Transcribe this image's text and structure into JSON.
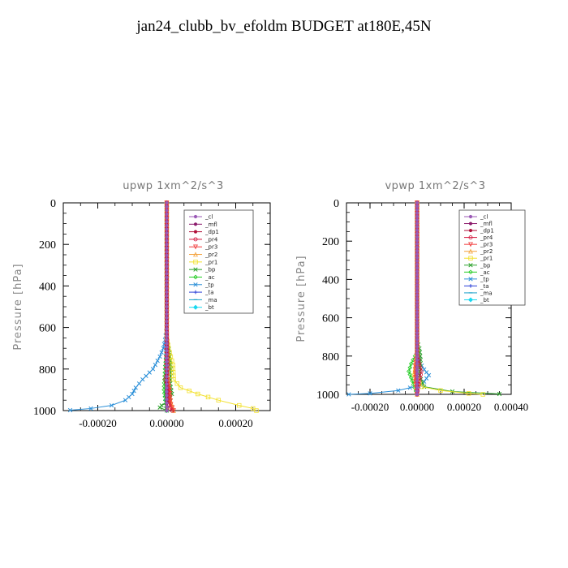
{
  "page_title": "jan24_clubb_bv_efoldm  BUDGET at180E,45N",
  "legend_entries": [
    {
      "label": "_cl",
      "color": "#9b59b6",
      "marker": "circle"
    },
    {
      "label": "_mfl",
      "color": "#8b1a6b",
      "marker": "circle"
    },
    {
      "label": "_dp1",
      "color": "#b0103a",
      "marker": "circle"
    },
    {
      "label": "_pr4",
      "color": "#d4143c",
      "marker": "circle-open"
    },
    {
      "label": "_pr3",
      "color": "#f03a3a",
      "marker": "triangle-down"
    },
    {
      "label": "_pr2",
      "color": "#f4a13a",
      "marker": "triangle-up"
    },
    {
      "label": "_pr1",
      "color": "#f2e02a",
      "marker": "square-open"
    },
    {
      "label": "_bp",
      "color": "#2aa02a",
      "marker": "x"
    },
    {
      "label": "_ac",
      "color": "#22cc22",
      "marker": "diamond-open"
    },
    {
      "label": "_tp",
      "color": "#2a8fd8",
      "marker": "x"
    },
    {
      "label": "_ta",
      "color": "#2a3fd8",
      "marker": "plus"
    },
    {
      "label": "_ma",
      "color": "#18a0c8",
      "marker": "dash"
    },
    {
      "label": "_bt",
      "color": "#18d8f0",
      "marker": "diamond"
    }
  ],
  "chart_data": [
    {
      "type": "line",
      "title": "upwp   1xm^2/s^3",
      "xlabel": "",
      "ylabel": "Pressure [hPa]",
      "xlim": [
        -0.0003,
        0.0003
      ],
      "ylim": [
        1000,
        0
      ],
      "xticks": [
        "-0.00020",
        "0.00000",
        "0.00020"
      ],
      "xtick_values": [
        -0.0002,
        0.0,
        0.0002
      ],
      "yticks": [
        "0",
        "200",
        "400",
        "600",
        "800",
        "1000"
      ],
      "ytick_values": [
        0,
        200,
        400,
        600,
        800,
        1000
      ],
      "legend_position": "top-right",
      "series": [
        {
          "name": "_cl",
          "color": "#9b59b6",
          "points": [
            [
              0,
              0
            ],
            [
              0,
              200
            ],
            [
              0,
              500
            ],
            [
              0,
              800
            ],
            [
              0,
              1000
            ]
          ]
        },
        {
          "name": "_mfl",
          "color": "#8b1a6b",
          "points": [
            [
              0,
              0
            ],
            [
              0,
              200
            ],
            [
              0,
              500
            ],
            [
              0,
              800
            ],
            [
              0,
              1000
            ]
          ]
        },
        {
          "name": "_dp1",
          "color": "#b0103a",
          "points": [
            [
              0,
              0
            ],
            [
              0,
              300
            ],
            [
              0,
              600
            ],
            [
              0,
              900
            ],
            [
              0,
              1000
            ]
          ]
        },
        {
          "name": "_pr4",
          "color": "#d4143c",
          "points": [
            [
              0,
              0
            ],
            [
              0,
              600
            ],
            [
              3e-06,
              800
            ],
            [
              -4e-06,
              850
            ],
            [
              5e-06,
              900
            ],
            [
              4e-06,
              950
            ],
            [
              1e-05,
              990
            ],
            [
              1.5e-05,
              1000
            ]
          ]
        },
        {
          "name": "_pr3",
          "color": "#f03a3a",
          "points": [
            [
              0,
              0
            ],
            [
              0,
              600
            ],
            [
              -2e-06,
              800
            ],
            [
              8e-06,
              900
            ],
            [
              1.2e-05,
              970
            ],
            [
              2e-05,
              1000
            ]
          ]
        },
        {
          "name": "_pr2",
          "color": "#f4a13a",
          "points": [
            [
              0,
              0
            ],
            [
              0,
              600
            ],
            [
              5e-06,
              850
            ],
            [
              1e-05,
              950
            ],
            [
              2e-05,
              1000
            ]
          ]
        },
        {
          "name": "_pr1",
          "color": "#f2e02a",
          "points": [
            [
              0,
              0
            ],
            [
              0,
              650
            ],
            [
              5e-06,
              700
            ],
            [
              1.8e-05,
              780
            ],
            [
              2e-05,
              850
            ],
            [
              4e-05,
              890
            ],
            [
              9e-05,
              920
            ],
            [
              0.00015,
              950
            ],
            [
              0.00021,
              975
            ],
            [
              0.00025,
              990
            ],
            [
              0.00026,
              1000
            ]
          ]
        },
        {
          "name": "_bp",
          "color": "#2aa02a",
          "points": [
            [
              0,
              0
            ],
            [
              0,
              650
            ],
            [
              8e-06,
              720
            ],
            [
              1.2e-05,
              800
            ],
            [
              1e-05,
              870
            ],
            [
              1.5e-05,
              920
            ],
            [
              5e-06,
              960
            ],
            [
              -1.5e-05,
              975
            ],
            [
              -2e-05,
              985
            ],
            [
              0,
              1000
            ]
          ]
        },
        {
          "name": "_ac",
          "color": "#22cc22",
          "points": [
            [
              0,
              0
            ],
            [
              0,
              700
            ],
            [
              -5e-06,
              800
            ],
            [
              -8e-06,
              900
            ],
            [
              0,
              1000
            ]
          ]
        },
        {
          "name": "_tp",
          "color": "#2a8fd8",
          "points": [
            [
              0,
              0
            ],
            [
              0,
              600
            ],
            [
              -5e-06,
              660
            ],
            [
              -1e-05,
              700
            ],
            [
              -2e-05,
              740
            ],
            [
              -4e-05,
              800
            ],
            [
              -7e-05,
              850
            ],
            [
              -9e-05,
              890
            ],
            [
              -0.0001,
              920
            ],
            [
              -0.00012,
              950
            ],
            [
              -0.00016,
              975
            ],
            [
              -0.00022,
              990
            ],
            [
              -0.00028,
              998
            ]
          ]
        },
        {
          "name": "_ta",
          "color": "#2a3fd8",
          "points": [
            [
              0,
              0
            ],
            [
              0,
              500
            ],
            [
              0,
              800
            ],
            [
              0,
              1000
            ]
          ]
        },
        {
          "name": "_ma",
          "color": "#18a0c8",
          "points": [
            [
              0,
              0
            ],
            [
              0,
              600
            ],
            [
              -3e-06,
              800
            ],
            [
              -5e-06,
              950
            ],
            [
              0,
              1000
            ]
          ]
        },
        {
          "name": "_bt",
          "color": "#18d8f0",
          "points": [
            [
              0,
              0
            ],
            [
              0,
              500
            ],
            [
              0,
              1000
            ]
          ]
        }
      ]
    },
    {
      "type": "line",
      "title": "vpwp   1xm^2/s^3",
      "xlabel": "",
      "ylabel": "Pressure [hPa]",
      "xlim": [
        -0.0003,
        0.0004
      ],
      "ylim": [
        1000,
        0
      ],
      "xticks": [
        "-0.00020",
        "0.00000",
        "0.00020",
        "0.00040"
      ],
      "xtick_values": [
        -0.0002,
        0.0,
        0.0002,
        0.0004
      ],
      "yticks": [
        "0",
        "200",
        "400",
        "600",
        "800",
        "1000"
      ],
      "ytick_values": [
        0,
        200,
        400,
        600,
        800,
        1000
      ],
      "legend_position": "top-right",
      "series": [
        {
          "name": "_cl",
          "color": "#9b59b6",
          "points": [
            [
              0,
              0
            ],
            [
              0,
              500
            ],
            [
              0,
              1000
            ]
          ]
        },
        {
          "name": "_mfl",
          "color": "#8b1a6b",
          "points": [
            [
              0,
              0
            ],
            [
              0,
              500
            ],
            [
              0,
              1000
            ]
          ]
        },
        {
          "name": "_dp1",
          "color": "#b0103a",
          "points": [
            [
              0,
              0
            ],
            [
              0,
              500
            ],
            [
              0,
              1000
            ]
          ]
        },
        {
          "name": "_pr4",
          "color": "#d4143c",
          "points": [
            [
              0,
              0
            ],
            [
              0,
              780
            ],
            [
              1e-05,
              840
            ],
            [
              1.8e-05,
              880
            ],
            [
              1e-05,
              930
            ],
            [
              0,
              1000
            ]
          ]
        },
        {
          "name": "_pr3",
          "color": "#f03a3a",
          "points": [
            [
              0,
              0
            ],
            [
              0,
              780
            ],
            [
              -8e-06,
              850
            ],
            [
              -6e-06,
              930
            ],
            [
              0,
              1000
            ]
          ]
        },
        {
          "name": "_pr2",
          "color": "#f4a13a",
          "points": [
            [
              0,
              0
            ],
            [
              0,
              800
            ],
            [
              -1e-05,
              900
            ],
            [
              0,
              1000
            ]
          ]
        },
        {
          "name": "_pr1",
          "color": "#f2e02a",
          "points": [
            [
              0,
              0
            ],
            [
              0,
              800
            ],
            [
              -1e-05,
              900
            ],
            [
              2e-05,
              960
            ],
            [
              0.0001,
              980
            ],
            [
              0.00022,
              995
            ],
            [
              0.00028,
              1000
            ]
          ]
        },
        {
          "name": "_bp",
          "color": "#2aa02a",
          "points": [
            [
              0,
              0
            ],
            [
              0,
              720
            ],
            [
              1e-05,
              760
            ],
            [
              1.5e-05,
              820
            ],
            [
              1e-05,
              900
            ],
            [
              3e-05,
              960
            ],
            [
              0.00015,
              985
            ],
            [
              0.00035,
              998
            ]
          ]
        },
        {
          "name": "_ac",
          "color": "#22cc22",
          "points": [
            [
              0,
              0
            ],
            [
              0,
              780
            ],
            [
              -2.5e-05,
              840
            ],
            [
              -3.5e-05,
              880
            ],
            [
              -2e-05,
              930
            ],
            [
              0,
              1000
            ]
          ]
        },
        {
          "name": "_tp",
          "color": "#2a8fd8",
          "points": [
            [
              0,
              0
            ],
            [
              0,
              780
            ],
            [
              1e-05,
              830
            ],
            [
              3e-05,
              870
            ],
            [
              5e-05,
              900
            ],
            [
              2e-05,
              950
            ],
            [
              -8e-05,
              980
            ],
            [
              -0.0002,
              995
            ],
            [
              -0.00029,
              1000
            ]
          ]
        },
        {
          "name": "_ta",
          "color": "#2a3fd8",
          "points": [
            [
              0,
              0
            ],
            [
              0,
              500
            ],
            [
              0,
              1000
            ]
          ]
        },
        {
          "name": "_ma",
          "color": "#18a0c8",
          "points": [
            [
              0,
              0
            ],
            [
              0,
              800
            ],
            [
              0,
              1000
            ]
          ]
        },
        {
          "name": "_bt",
          "color": "#18d8f0",
          "points": [
            [
              0,
              0
            ],
            [
              0,
              500
            ],
            [
              0,
              1000
            ]
          ]
        }
      ]
    }
  ]
}
